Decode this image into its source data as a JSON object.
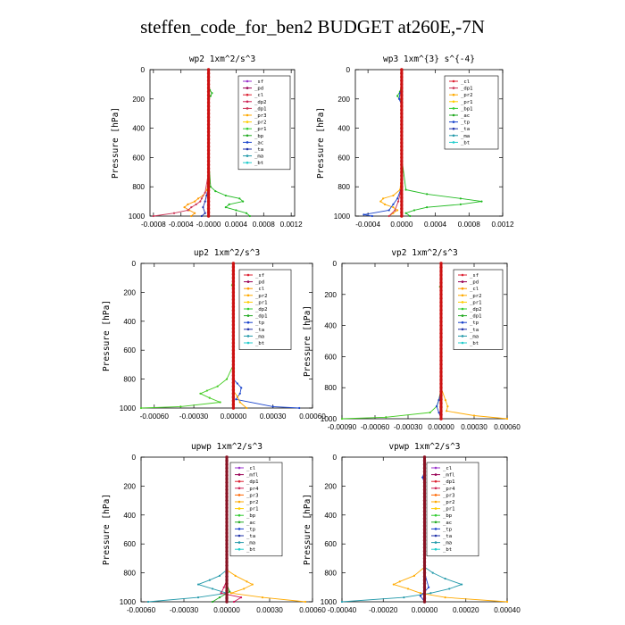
{
  "title": "steffen_code_for_ben2  BUDGET at260E,-7N",
  "chart_data": [
    {
      "type": "line",
      "title": "wp2   1xm^2/s^3",
      "ylabel": "Pressure [hPa]",
      "xticks": [
        -0.0008,
        -0.0004,
        0.0,
        0.0004,
        0.0008,
        0.0012
      ],
      "xtick_labels": [
        "-0.0008",
        "-0.0004",
        "-0.0000",
        "0.0004",
        "0.0008",
        "0.0012"
      ],
      "xlim": [
        -0.00085,
        0.00125
      ],
      "yticks": [
        0,
        200,
        400,
        600,
        800,
        1000
      ],
      "ylim": [
        1000,
        0
      ],
      "legend": [
        "_sf",
        "_pd",
        "_cl",
        "_dp2",
        "_dp1",
        "_pr3",
        "_pr2",
        "_pr1",
        "_bp",
        "_ac",
        "_ta",
        "_ma",
        "_bt"
      ],
      "legend_colors": [
        "#9933cc",
        "#990055",
        "#dd2233",
        "#cc2255",
        "#cc3355",
        "#ffaa00",
        "#ffcc00",
        "#33cc33",
        "#22aa22",
        "#1a44cc",
        "#2233aa",
        "#2299aa",
        "#22cccc"
      ],
      "series": [
        {
          "name": "_ac",
          "color": "#22bb22",
          "pressure": [
            0,
            100,
            140,
            160,
            180,
            200,
            600,
            800,
            830,
            860,
            880,
            900,
            920,
            940,
            960,
            980,
            1000
          ],
          "values": [
            0,
            0,
            2e-05,
            5e-05,
            3e-05,
            0,
            0,
            3e-05,
            0.0001,
            0.00025,
            0.00045,
            0.0005,
            0.0003,
            0.00025,
            0.0004,
            0.00055,
            0.0006
          ]
        },
        {
          "name": "_pr1",
          "color": "#ff9900",
          "pressure": [
            0,
            700,
            820,
            860,
            880,
            900,
            920,
            940,
            960,
            980,
            1000
          ],
          "values": [
            0,
            0,
            -2e-05,
            -8e-05,
            -0.00015,
            -0.0002,
            -0.0003,
            -0.00035,
            -0.00028,
            -0.0002,
            -0.00025
          ]
        },
        {
          "name": "_dp1",
          "color": "#cc3355",
          "pressure": [
            0,
            700,
            840,
            880,
            900,
            920,
            940,
            960,
            980,
            1000
          ],
          "values": [
            0,
            0,
            -5e-05,
            -0.0001,
            -0.00012,
            -0.00018,
            -0.00025,
            -0.0003,
            -0.0005,
            -0.0008
          ]
        },
        {
          "name": "_bp",
          "color": "#2233aa",
          "pressure": [
            0,
            800,
            860,
            900,
            940,
            980,
            1000
          ],
          "values": [
            0,
            0,
            -3e-05,
            -5e-05,
            -8e-05,
            -5e-05,
            -0.0001
          ]
        },
        {
          "name": "_cl",
          "color": "#cc1111",
          "pressure": [
            0,
            1000
          ],
          "values": [
            0,
            0
          ]
        }
      ]
    },
    {
      "type": "line",
      "title": "wp3   1xm^{3} s^{-4}",
      "ylabel": "Pressure [hPa]",
      "xticks": [
        -0.0004,
        0.0,
        0.0004,
        0.0008,
        0.0012
      ],
      "xtick_labels": [
        "-0.0004",
        "0.0000",
        "0.0004",
        "0.0008",
        "0.0012"
      ],
      "xlim": [
        -0.00055,
        0.0012
      ],
      "yticks": [
        0,
        200,
        400,
        600,
        800,
        1000
      ],
      "ylim": [
        1000,
        0
      ],
      "legend": [
        "_cl",
        "_dp1",
        "_pr2",
        "_pr1",
        "_bp1",
        "_ac",
        "_tp",
        "_ta",
        "_ma",
        "_bt"
      ],
      "legend_colors": [
        "#dd2233",
        "#cc3355",
        "#ffaa00",
        "#ffcc00",
        "#33cc33",
        "#22aa22",
        "#1a44cc",
        "#2233aa",
        "#2299aa",
        "#22cccc"
      ],
      "series": [
        {
          "name": "_ac",
          "color": "#22bb22",
          "pressure": [
            0,
            100,
            150,
            180,
            220,
            600,
            820,
            850,
            880,
            900,
            920,
            940,
            960,
            980,
            1000
          ],
          "values": [
            0,
            0,
            -2e-05,
            -5e-05,
            0,
            0,
            5e-05,
            0.0003,
            0.0007,
            0.00095,
            0.0007,
            0.0003,
            0.00015,
            5e-05,
            0.0001
          ]
        },
        {
          "name": "_pr2",
          "color": "#ffaa00",
          "pressure": [
            0,
            700,
            820,
            860,
            880,
            900,
            920,
            940,
            960,
            980,
            1000
          ],
          "values": [
            0,
            0,
            -2e-05,
            -0.0001,
            -0.00022,
            -0.00025,
            -0.0002,
            -0.0001,
            -5e-05,
            -0.0001,
            -0.00015
          ]
        },
        {
          "name": "_tp",
          "color": "#1a44cc",
          "pressure": [
            0,
            120,
            160,
            200,
            240,
            800,
            880,
            920,
            960,
            990,
            1000
          ],
          "values": [
            0,
            0,
            -2e-05,
            -3e-05,
            0,
            0,
            -5e-05,
            -0.0001,
            -0.00015,
            -0.00045,
            -0.00035
          ]
        },
        {
          "name": "_dp1",
          "color": "#cc3355",
          "pressure": [
            0,
            800,
            900,
            960,
            1000
          ],
          "values": [
            0,
            0,
            -4e-05,
            -8e-05,
            -0.00015
          ]
        },
        {
          "name": "_cl",
          "color": "#cc1111",
          "pressure": [
            0,
            1000
          ],
          "values": [
            0,
            0
          ]
        }
      ]
    },
    {
      "type": "line",
      "title": "up2   1xm^2/s^3",
      "ylabel": "Pressure [hPa]",
      "xticks": [
        -0.0006,
        -0.0003,
        0.0,
        0.0003,
        0.0006
      ],
      "xtick_labels": [
        "-0.00060",
        "-0.00030",
        "0.00000",
        "0.00030",
        "0.00060"
      ],
      "xlim": [
        -0.0007,
        0.0006
      ],
      "yticks": [
        0,
        200,
        400,
        600,
        800,
        1000
      ],
      "ylim": [
        1000,
        0
      ],
      "legend": [
        "_sf",
        "_pd",
        "_cl",
        "_pr2",
        "_pr1",
        "_dp2",
        "_dp1",
        "_tp",
        "_ta",
        "_ma",
        "_bt"
      ],
      "legend_colors": [
        "#dd2233",
        "#990055",
        "#ff9900",
        "#ffaa00",
        "#ffcc00",
        "#33cc33",
        "#22aa22",
        "#1a44cc",
        "#2233aa",
        "#2299aa",
        "#22cccc"
      ],
      "series": [
        {
          "name": "_dp2",
          "color": "#44cc22",
          "pressure": [
            0,
            100,
            150,
            200,
            700,
            800,
            850,
            880,
            900,
            930,
            960,
            990,
            1000
          ],
          "values": [
            0,
            0,
            -1e-05,
            0,
            0,
            -5e-05,
            -0.00012,
            -0.0002,
            -0.00025,
            -0.00018,
            -0.0001,
            -0.0004,
            -0.0007
          ]
        },
        {
          "name": "_tp",
          "color": "#1a44cc",
          "pressure": [
            0,
            800,
            830,
            860,
            900,
            940,
            990,
            1000
          ],
          "values": [
            0,
            0,
            3e-05,
            6e-05,
            5e-05,
            2e-05,
            0.0003,
            0.0005
          ]
        },
        {
          "name": "_pr1",
          "color": "#ffaa00",
          "pressure": [
            0,
            880,
            920,
            960,
            1000
          ],
          "values": [
            0,
            0,
            3e-05,
            5e-05,
            0.0001
          ]
        },
        {
          "name": "_cl",
          "color": "#cc1111",
          "pressure": [
            0,
            1000
          ],
          "values": [
            0,
            0
          ]
        }
      ]
    },
    {
      "type": "line",
      "title": "vp2   1xm^2/s^3",
      "ylabel": "Pressure [hPa]",
      "xticks": [
        -0.0009,
        -0.0006,
        -0.0003,
        0.0,
        0.0003,
        0.0006
      ],
      "xtick_labels": [
        "-0.00090",
        "-0.00060",
        "-0.00030",
        "0.00000",
        "0.00030",
        "0.00060"
      ],
      "xlim": [
        -0.0009,
        0.0006
      ],
      "yticks": [
        0,
        200,
        400,
        600,
        800,
        1000
      ],
      "ylim": [
        1000,
        0
      ],
      "legend": [
        "_sf",
        "_pd",
        "_cl",
        "_pr2",
        "_pr1",
        "_dp2",
        "_dp1",
        "_tp",
        "_ta",
        "_ma",
        "_bt"
      ],
      "legend_colors": [
        "#dd2233",
        "#990055",
        "#ff9900",
        "#ffaa00",
        "#ffcc00",
        "#33cc33",
        "#22aa22",
        "#1a44cc",
        "#2233aa",
        "#2299aa",
        "#22cccc"
      ],
      "series": [
        {
          "name": "_dp2",
          "color": "#44cc22",
          "pressure": [
            0,
            100,
            150,
            200,
            800,
            880,
            920,
            960,
            990,
            1000
          ],
          "values": [
            0,
            0,
            -1e-05,
            0,
            0,
            -2e-05,
            -4e-05,
            -0.0001,
            -0.0005,
            -0.0009
          ]
        },
        {
          "name": "_pr1",
          "color": "#ffaa00",
          "pressure": [
            0,
            800,
            880,
            920,
            950,
            980,
            1000
          ],
          "values": [
            0,
            0,
            4e-05,
            6e-05,
            5e-05,
            0.0003,
            0.0006
          ]
        },
        {
          "name": "_tp",
          "color": "#1a44cc",
          "pressure": [
            0,
            820,
            880,
            920,
            960,
            1000
          ],
          "values": [
            0,
            0,
            -2e-05,
            -4e-05,
            -2e-05,
            0
          ]
        },
        {
          "name": "_cl",
          "color": "#cc1111",
          "pressure": [
            0,
            1000
          ],
          "values": [
            0,
            0
          ]
        }
      ]
    },
    {
      "type": "line",
      "title": "upwp   1xm^2/s^3",
      "ylabel": "Pressure [hPa]",
      "xticks": [
        -0.0006,
        -0.0003,
        0.0,
        0.0003,
        0.0006
      ],
      "xtick_labels": [
        "-0.00060",
        "-0.00030",
        "0.00000",
        "0.00030",
        "0.00060"
      ],
      "xlim": [
        -0.0006,
        0.0006
      ],
      "yticks": [
        0,
        200,
        400,
        600,
        800,
        1000
      ],
      "ylim": [
        1000,
        0
      ],
      "legend": [
        "_cl",
        "_mfl",
        "_dp1",
        "_pr4",
        "_pr3",
        "_pr2",
        "_pr1",
        "_bp",
        "_ac",
        "_tp",
        "_ta",
        "_ma",
        "_bt"
      ],
      "legend_colors": [
        "#9933cc",
        "#990055",
        "#dd2233",
        "#cc2255",
        "#ff6600",
        "#ffaa00",
        "#ffcc00",
        "#33cc33",
        "#22aa22",
        "#1a44cc",
        "#2233aa",
        "#2299aa",
        "#22cccc"
      ],
      "series": [
        {
          "name": "_ta",
          "color": "#2299aa",
          "pressure": [
            0,
            780,
            820,
            850,
            880,
            910,
            940,
            970,
            1000
          ],
          "values": [
            0,
            0,
            -5e-05,
            -0.00012,
            -0.0002,
            -0.0001,
            0,
            -0.0002,
            -0.00055
          ]
        },
        {
          "name": "_pr2",
          "color": "#ffaa00",
          "pressure": [
            0,
            780,
            820,
            860,
            880,
            910,
            940,
            970,
            1000
          ],
          "values": [
            0,
            0,
            6e-05,
            0.00014,
            0.00018,
            0.00012,
            3e-05,
            0.00025,
            0.00055
          ]
        },
        {
          "name": "_dp1",
          "color": "#cc1155",
          "pressure": [
            0,
            850,
            900,
            940,
            970,
            1000
          ],
          "values": [
            0,
            0,
            -2e-05,
            -4e-05,
            0.0001,
            5e-05
          ]
        },
        {
          "name": "_ac",
          "color": "#22aa22",
          "pressure": [
            0,
            880,
            930,
            970,
            1000
          ],
          "values": [
            0,
            0,
            2e-05,
            -5e-05,
            -0.0001
          ]
        },
        {
          "name": "_cl",
          "color": "#881122",
          "pressure": [
            0,
            1000
          ],
          "values": [
            0,
            0
          ]
        }
      ]
    },
    {
      "type": "line",
      "title": "vpwp   1xm^2/s^3",
      "ylabel": "Pressure [hPa]",
      "xticks": [
        -0.0004,
        -0.0002,
        0.0,
        0.0002,
        0.0004
      ],
      "xtick_labels": [
        "-0.00040",
        "-0.00020",
        "0.00000",
        "0.00020",
        "0.00040"
      ],
      "xlim": [
        -0.0004,
        0.0004
      ],
      "yticks": [
        0,
        200,
        400,
        600,
        800,
        1000
      ],
      "ylim": [
        1000,
        0
      ],
      "legend": [
        "_cl",
        "_mfl",
        "_dp1",
        "_pr4",
        "_pr3",
        "_pr2",
        "_pr1",
        "_bp",
        "_ac",
        "_tp",
        "_ta",
        "_ma",
        "_bt"
      ],
      "legend_colors": [
        "#9933cc",
        "#990055",
        "#dd2233",
        "#cc2255",
        "#ff6600",
        "#ffaa00",
        "#ffcc00",
        "#33cc33",
        "#22aa22",
        "#1a44cc",
        "#2233aa",
        "#2299aa",
        "#22cccc"
      ],
      "series": [
        {
          "name": "_ta",
          "color": "#2299aa",
          "pressure": [
            0,
            760,
            800,
            840,
            880,
            910,
            940,
            970,
            1000
          ],
          "values": [
            0,
            0,
            4e-05,
            0.0001,
            0.00018,
            0.00012,
            3e-05,
            -0.0001,
            -0.0004
          ]
        },
        {
          "name": "_pr2",
          "color": "#ffaa00",
          "pressure": [
            0,
            760,
            820,
            860,
            880,
            910,
            940,
            970,
            1000
          ],
          "values": [
            0,
            0,
            -5e-05,
            -0.00012,
            -0.00015,
            -8e-05,
            -2e-05,
            0.0001,
            0.0004
          ]
        },
        {
          "name": "_tp",
          "color": "#1a44cc",
          "pressure": [
            0,
            100,
            140,
            180,
            800,
            900,
            960,
            1000
          ],
          "values": [
            0,
            0,
            -1e-05,
            0,
            0,
            2e-05,
            -2e-05,
            0
          ]
        },
        {
          "name": "_cl",
          "color": "#881122",
          "pressure": [
            0,
            1000
          ],
          "values": [
            0,
            0
          ]
        }
      ]
    }
  ]
}
